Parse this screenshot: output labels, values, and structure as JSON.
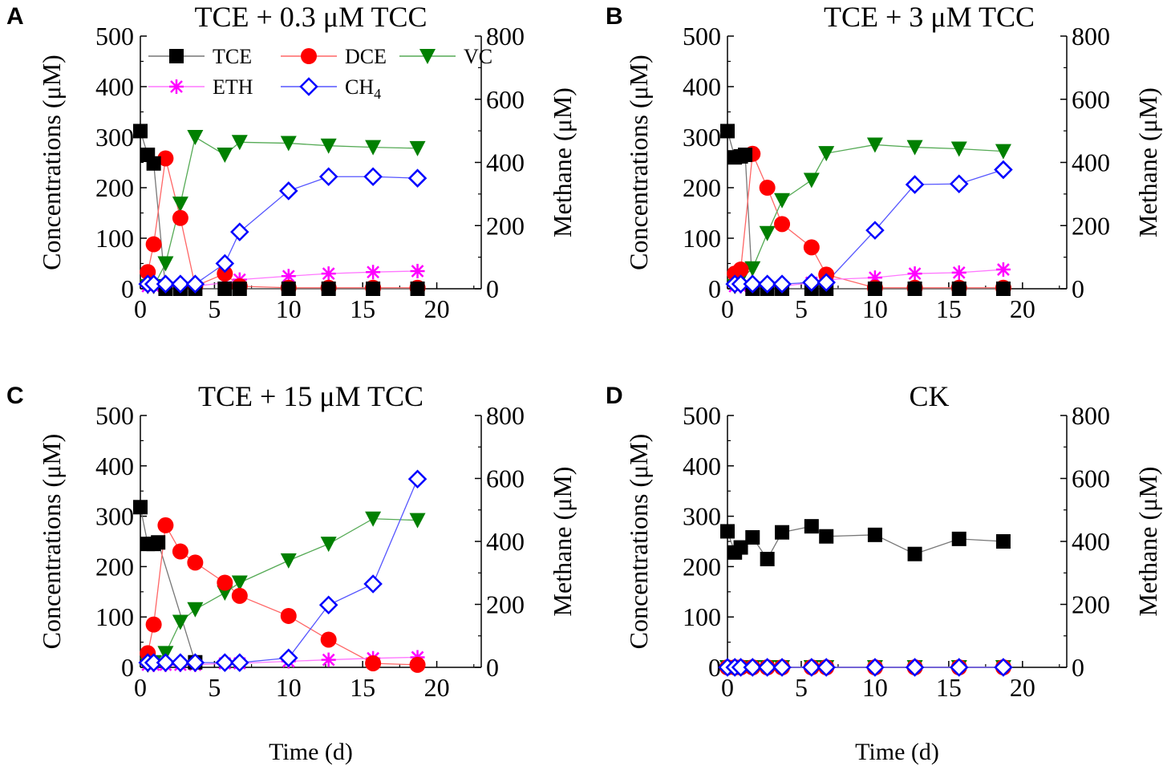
{
  "chart_data": [
    {
      "type": "line",
      "panel": "A",
      "title": "TCE + 0.3 μM TCC",
      "xlabel": "",
      "ylabel": "Concentrations (μM)",
      "y2label": "Methane (μM)",
      "xlim": [
        0,
        23
      ],
      "xticks": [
        0,
        5,
        10,
        15,
        20
      ],
      "ylim": [
        0,
        500
      ],
      "yticks": [
        0,
        100,
        200,
        300,
        400,
        500
      ],
      "y2lim": [
        0,
        800
      ],
      "y2ticks": [
        0,
        200,
        400,
        600,
        800
      ],
      "series": [
        {
          "name": "TCE",
          "axis": "left",
          "x": [
            0,
            0.5,
            0.9,
            1.7,
            2.7,
            3.7,
            5.7,
            6.7,
            10,
            12.7,
            15.7,
            18.7
          ],
          "values": [
            312,
            265,
            248,
            0,
            0,
            0,
            0,
            0,
            0,
            0,
            0,
            0
          ]
        },
        {
          "name": "DCE",
          "axis": "left",
          "x": [
            0.5,
            0.9,
            1.7,
            2.7,
            3.7,
            5.7,
            6.7,
            10,
            12.7,
            15.7,
            18.7
          ],
          "values": [
            33,
            88,
            258,
            140,
            5,
            30,
            5,
            2,
            2,
            2,
            2
          ]
        },
        {
          "name": "VC",
          "axis": "left",
          "x": [
            0.5,
            0.9,
            1.7,
            2.7,
            3.7,
            5.7,
            6.7,
            10,
            12.7,
            15.7,
            18.7
          ],
          "values": [
            5,
            5,
            50,
            168,
            300,
            265,
            290,
            288,
            283,
            280,
            278
          ]
        },
        {
          "name": "ETH",
          "axis": "left",
          "x": [
            0.5,
            0.9,
            1.7,
            2.7,
            3.7,
            5.7,
            6.7,
            10,
            12.7,
            15.7,
            18.7
          ],
          "values": [
            5,
            5,
            5,
            5,
            5,
            12,
            18,
            25,
            30,
            33,
            35
          ]
        },
        {
          "name": "CH4",
          "axis": "right",
          "x": [
            0.5,
            0.9,
            1.7,
            2.7,
            3.7,
            5.7,
            6.7,
            10,
            12.7,
            15.7,
            18.7
          ],
          "values": [
            15,
            15,
            15,
            15,
            15,
            80,
            180,
            310,
            355,
            355,
            350
          ]
        }
      ]
    },
    {
      "type": "line",
      "panel": "B",
      "title": "TCE + 3 μM TCC",
      "xlabel": "",
      "ylabel": "Concentrations (μM)",
      "y2label": "Methane (μM)",
      "xlim": [
        0,
        23
      ],
      "xticks": [
        0,
        5,
        10,
        15,
        20
      ],
      "ylim": [
        0,
        500
      ],
      "yticks": [
        0,
        100,
        200,
        300,
        400,
        500
      ],
      "y2lim": [
        0,
        800
      ],
      "y2ticks": [
        0,
        200,
        400,
        600,
        800
      ],
      "series": [
        {
          "name": "TCE",
          "axis": "left",
          "x": [
            0,
            0.5,
            0.9,
            1.2,
            1.7,
            2.7,
            3.7,
            5.7,
            6.7,
            10,
            12.7,
            15.7,
            18.7
          ],
          "values": [
            312,
            260,
            262,
            265,
            0,
            0,
            0,
            0,
            0,
            0,
            0,
            0,
            0
          ]
        },
        {
          "name": "DCE",
          "axis": "left",
          "x": [
            0.5,
            0.9,
            1.7,
            2.7,
            3.7,
            5.7,
            6.7,
            10,
            12.7,
            15.7,
            18.7
          ],
          "values": [
            30,
            38,
            267,
            200,
            128,
            82,
            28,
            2,
            2,
            2,
            2
          ]
        },
        {
          "name": "VC",
          "axis": "left",
          "x": [
            0.5,
            0.9,
            1.7,
            2.7,
            3.7,
            5.7,
            6.7,
            10,
            12.7,
            15.7,
            18.7
          ],
          "values": [
            5,
            20,
            40,
            110,
            175,
            215,
            268,
            285,
            280,
            277,
            272
          ]
        },
        {
          "name": "ETH",
          "axis": "left",
          "x": [
            0.5,
            0.9,
            1.7,
            2.7,
            3.7,
            5.7,
            6.7,
            10,
            12.7,
            15.7,
            18.7
          ],
          "values": [
            5,
            5,
            5,
            5,
            5,
            12,
            18,
            22,
            30,
            32,
            38
          ]
        },
        {
          "name": "CH4",
          "axis": "right",
          "x": [
            0.5,
            0.9,
            1.7,
            2.7,
            3.7,
            5.7,
            6.7,
            10,
            12.7,
            15.7,
            18.7
          ],
          "values": [
            15,
            15,
            15,
            15,
            15,
            20,
            20,
            185,
            330,
            332,
            377
          ]
        }
      ]
    },
    {
      "type": "line",
      "panel": "C",
      "title": "TCE + 15 μM TCC",
      "xlabel": "Time (d)",
      "ylabel": "Concentrations (μM)",
      "y2label": "Methane (μM)",
      "xlim": [
        0,
        23
      ],
      "xticks": [
        0,
        5,
        10,
        15,
        20
      ],
      "ylim": [
        0,
        500
      ],
      "yticks": [
        0,
        100,
        200,
        300,
        400,
        500
      ],
      "y2lim": [
        0,
        800
      ],
      "y2ticks": [
        0,
        200,
        400,
        600,
        800
      ],
      "series": [
        {
          "name": "TCE",
          "axis": "left",
          "x": [
            0,
            0.5,
            0.9,
            1.2,
            3.7
          ],
          "values": [
            318,
            245,
            245,
            248,
            10
          ]
        },
        {
          "name": "DCE",
          "axis": "left",
          "x": [
            0.5,
            0.9,
            1.7,
            2.7,
            3.7,
            5.7,
            6.7,
            10,
            12.7,
            15.7,
            18.7
          ],
          "values": [
            28,
            85,
            282,
            230,
            208,
            168,
            142,
            102,
            55,
            8,
            5
          ]
        },
        {
          "name": "VC",
          "axis": "left",
          "x": [
            0.5,
            0.9,
            1.7,
            2.7,
            3.7,
            5.7,
            6.7,
            10,
            12.7,
            15.7,
            18.7
          ],
          "values": [
            5,
            10,
            28,
            90,
            115,
            148,
            168,
            212,
            245,
            295,
            292
          ]
        },
        {
          "name": "ETH",
          "axis": "left",
          "x": [
            0.5,
            0.9,
            1.7,
            2.7,
            3.7,
            5.7,
            6.7,
            10,
            12.7,
            15.7,
            18.7
          ],
          "values": [
            5,
            5,
            5,
            5,
            5,
            8,
            8,
            12,
            15,
            18,
            20
          ]
        },
        {
          "name": "CH4",
          "axis": "right",
          "x": [
            0.5,
            0.9,
            1.7,
            2.7,
            3.7,
            5.7,
            6.7,
            10,
            12.7,
            15.7,
            18.7
          ],
          "values": [
            15,
            15,
            15,
            15,
            15,
            15,
            15,
            30,
            198,
            265,
            598
          ]
        }
      ]
    },
    {
      "type": "line",
      "panel": "D",
      "title": "CK",
      "xlabel": "Time (d)",
      "ylabel": "Concentrations (μM)",
      "y2label": "Methane (μM)",
      "xlim": [
        0,
        23
      ],
      "xticks": [
        0,
        5,
        10,
        15,
        20
      ],
      "ylim": [
        0,
        500
      ],
      "yticks": [
        0,
        100,
        200,
        300,
        400,
        500
      ],
      "y2lim": [
        0,
        800
      ],
      "y2ticks": [
        0,
        200,
        400,
        600,
        800
      ],
      "series": [
        {
          "name": "TCE",
          "axis": "left",
          "x": [
            0,
            0.5,
            0.9,
            1.7,
            2.7,
            3.7,
            5.7,
            6.7,
            10,
            12.7,
            15.7,
            18.7
          ],
          "values": [
            270,
            228,
            238,
            258,
            215,
            268,
            280,
            260,
            263,
            225,
            255,
            250
          ]
        },
        {
          "name": "DCE",
          "axis": "left",
          "x": [
            0,
            0.5,
            0.9,
            1.7,
            2.7,
            3.7,
            5.7,
            6.7,
            10,
            12.7,
            15.7,
            18.7
          ],
          "values": [
            0,
            0,
            0,
            0,
            0,
            0,
            0,
            0,
            0,
            0,
            0,
            0
          ]
        },
        {
          "name": "VC",
          "axis": "left",
          "x": [
            0,
            0.5,
            0.9,
            1.7,
            2.7,
            3.7,
            5.7,
            6.7,
            10,
            12.7,
            15.7,
            18.7
          ],
          "values": [
            0,
            0,
            0,
            0,
            0,
            0,
            0,
            0,
            0,
            0,
            0,
            0
          ]
        },
        {
          "name": "ETH",
          "axis": "left",
          "x": [
            0,
            0.5,
            0.9,
            1.7,
            2.7,
            3.7,
            5.7,
            6.7,
            10,
            12.7,
            15.7,
            18.7
          ],
          "values": [
            0,
            0,
            0,
            0,
            0,
            0,
            0,
            0,
            0,
            0,
            0,
            0
          ]
        },
        {
          "name": "CH4",
          "axis": "right",
          "x": [
            0,
            0.5,
            0.9,
            1.7,
            2.7,
            3.7,
            5.7,
            6.7,
            10,
            12.7,
            15.7,
            18.7
          ],
          "values": [
            0,
            0,
            0,
            0,
            0,
            0,
            0,
            0,
            0,
            0,
            0,
            0
          ]
        }
      ]
    }
  ],
  "legend": {
    "placement": "top-left of panel A",
    "items": [
      {
        "name": "TCE",
        "label": "TCE",
        "color": "#000000",
        "marker": "square"
      },
      {
        "name": "DCE",
        "label": "DCE",
        "color": "#ff0000",
        "marker": "circle"
      },
      {
        "name": "VC",
        "label": "VC",
        "color": "#008000",
        "marker": "triangle-down"
      },
      {
        "name": "ETH",
        "label": "ETH",
        "color": "#ff00ff",
        "marker": "asterisk"
      },
      {
        "name": "CH4",
        "label": "CH",
        "sub": "4",
        "color": "#0000ff",
        "marker": "diamond-open"
      }
    ]
  },
  "series_colors": {
    "TCE": "#000000",
    "DCE": "#ff0000",
    "VC": "#008000",
    "ETH": "#ff00ff",
    "CH4": "#0000ff",
    "TCE_line": "#777777",
    "DCE_line": "#ff6666",
    "VC_line": "#55aa55",
    "ETH_line": "#ff77ff",
    "CH4_line": "#5555ff"
  }
}
